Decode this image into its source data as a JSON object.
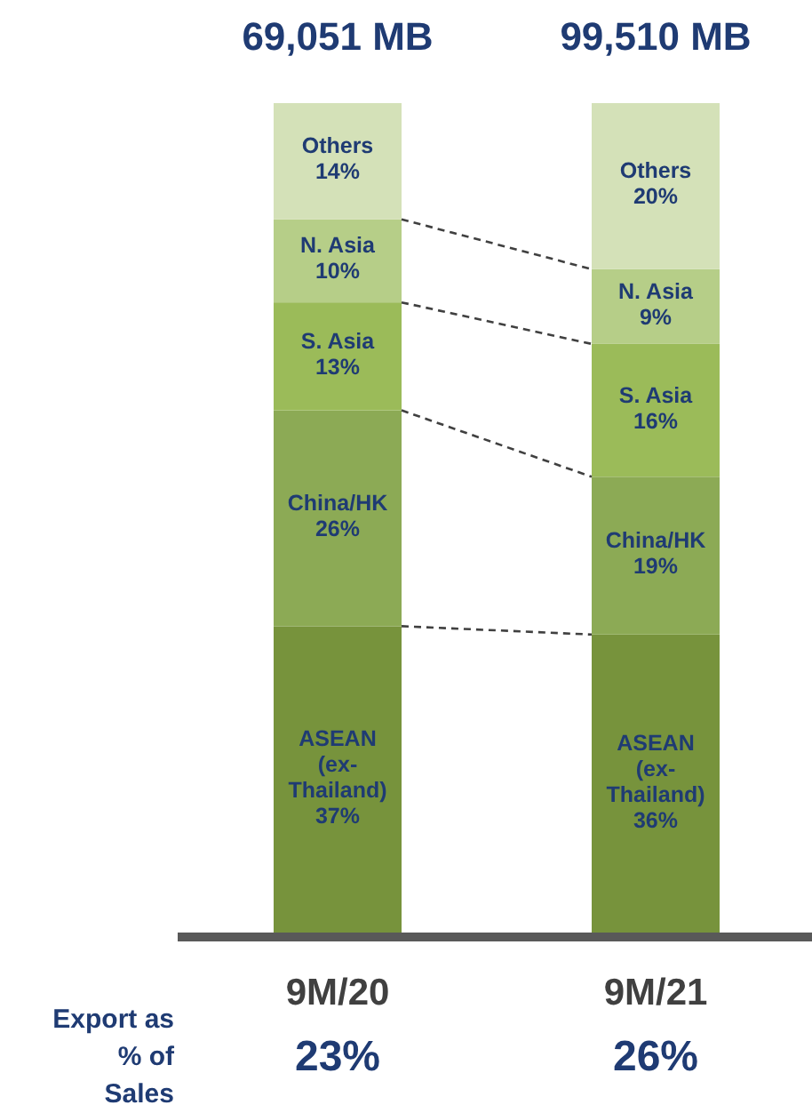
{
  "chart_data": {
    "type": "bar",
    "stacked": true,
    "categories": [
      "9M/20",
      "9M/21"
    ],
    "series": [
      {
        "name": "ASEAN (ex-Thailand)",
        "color": "#77933c",
        "values": [
          37,
          36
        ],
        "value_labels": [
          "37%",
          "36%"
        ]
      },
      {
        "name": "China/HK",
        "color": "#8caa55",
        "values": [
          26,
          19
        ],
        "value_labels": [
          "26%",
          "19%"
        ]
      },
      {
        "name": "S. Asia",
        "color": "#9bbb59",
        "values": [
          13,
          16
        ],
        "value_labels": [
          "13%",
          "16%"
        ]
      },
      {
        "name": "N. Asia",
        "color": "#b6ce88",
        "values": [
          10,
          9
        ],
        "value_labels": [
          "10%",
          "9%"
        ]
      },
      {
        "name": "Others",
        "color": "#d4e1b8",
        "values": [
          14,
          20
        ],
        "value_labels": [
          "14%",
          "20%"
        ]
      }
    ],
    "annotations": [
      "69,051 MB",
      "99,510 MB",
      "Export as % of Sales",
      "23%",
      "26%"
    ]
  }
}
